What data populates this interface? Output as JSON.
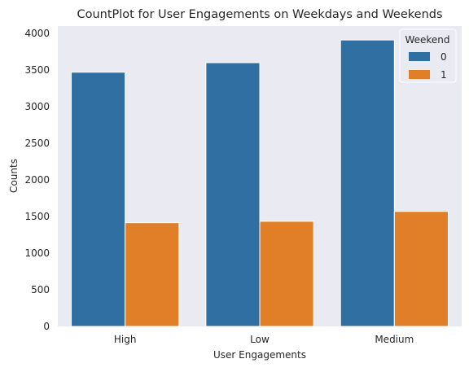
{
  "chart_data": {
    "type": "bar",
    "title": "CountPlot for User Engagements on Weekdays and Weekends",
    "xlabel": "User Engagements",
    "ylabel": "Counts",
    "categories": [
      "High",
      "Low",
      "Medium"
    ],
    "series": [
      {
        "name": "0",
        "values": [
          3470,
          3600,
          3910
        ],
        "color": "#2f6fa1"
      },
      {
        "name": "1",
        "values": [
          1415,
          1435,
          1570
        ],
        "color": "#e07f27"
      }
    ],
    "ylim": [
      0,
      4100
    ],
    "yticks": [
      0,
      500,
      1000,
      1500,
      2000,
      2500,
      3000,
      3500,
      4000
    ],
    "legend": {
      "title": "Weekend",
      "position": "top-right"
    },
    "grid": false,
    "background_color": "#eaeaf2"
  }
}
